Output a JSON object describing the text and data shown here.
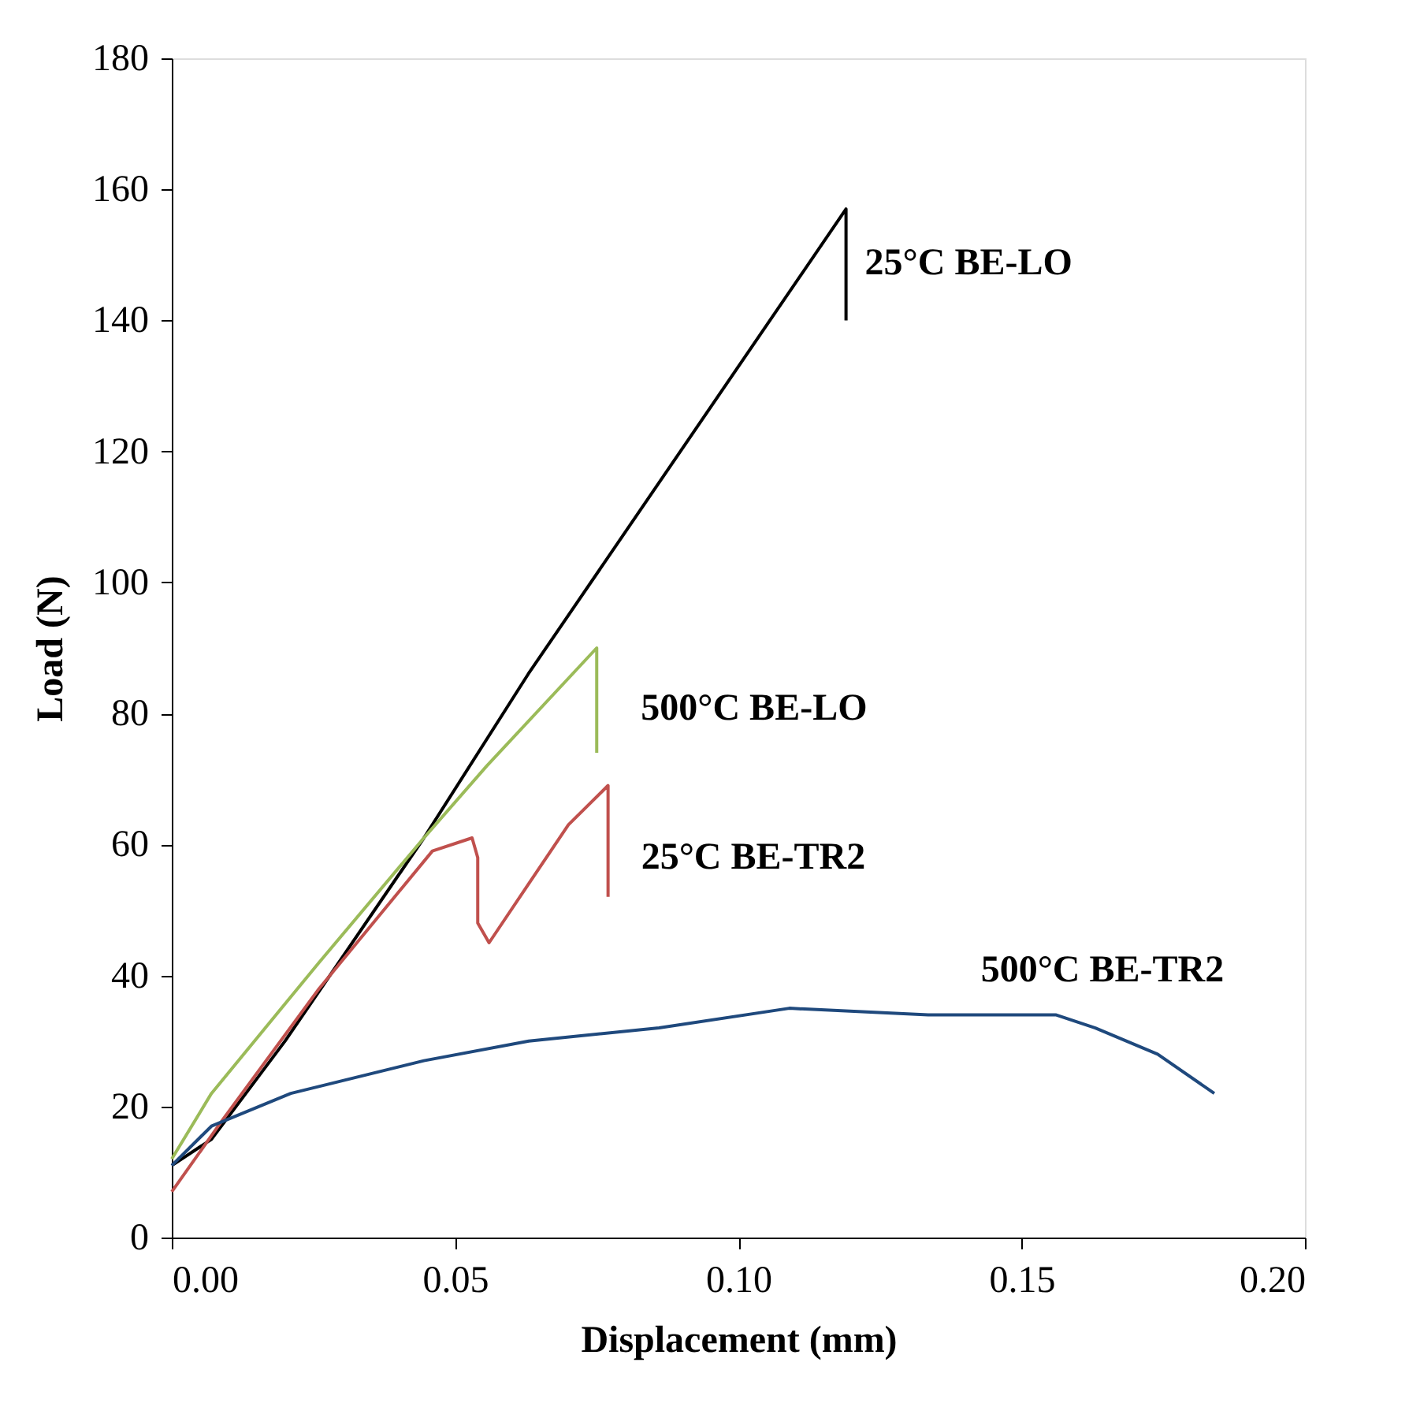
{
  "chart_data": {
    "type": "line",
    "xlabel": "Displacement (mm)",
    "ylabel": "Load (N)",
    "xlim": [
      0,
      0.2
    ],
    "xticks": [
      {
        "value": 0,
        "label": "0.00"
      },
      {
        "value": 0.05,
        "label": "0.05"
      },
      {
        "value": 0.1,
        "label": "0.10"
      },
      {
        "value": 0.15,
        "label": "0.15"
      },
      {
        "value": 0.2,
        "label": "0.20"
      }
    ],
    "ylim": [
      0,
      180
    ],
    "yticks": [
      0,
      20,
      40,
      60,
      80,
      100,
      120,
      140,
      160,
      180
    ],
    "grid": false,
    "legend": false,
    "marker": "none",
    "line_style": "solid",
    "series": [
      {
        "name": "25°C BE-LO",
        "color": "#000000",
        "x": [
          0,
          0.007,
          0.02,
          0.0445,
          0.0629,
          0.119,
          0.119
        ],
        "values": [
          11,
          15,
          30,
          61,
          86,
          157,
          140
        ]
      },
      {
        "name": "500°C BE-LO",
        "color": "#9bbb59",
        "x": [
          0,
          0.007,
          0.026,
          0.0445,
          0.0556,
          0.075,
          0.075
        ],
        "values": [
          12,
          22,
          42,
          61,
          72,
          90,
          74
        ]
      },
      {
        "name": "25°C BE-TR2",
        "color": "#c0504d",
        "x": [
          0,
          0.009,
          0.026,
          0.046,
          0.053,
          0.054,
          0.054,
          0.056,
          0.063,
          0.07,
          0.077,
          0.077
        ],
        "values": [
          7,
          18,
          38,
          59,
          61,
          58,
          48,
          45,
          54,
          63,
          69,
          52
        ]
      },
      {
        "name": "500°C BE-TR2",
        "color": "#1f497d",
        "x": [
          0,
          0.007,
          0.021,
          0.0445,
          0.063,
          0.086,
          0.109,
          0.1335,
          0.156,
          0.163,
          0.174,
          0.184
        ],
        "values": [
          11,
          17,
          22,
          27,
          30,
          32,
          35,
          34,
          34,
          32,
          28,
          22
        ]
      }
    ]
  }
}
